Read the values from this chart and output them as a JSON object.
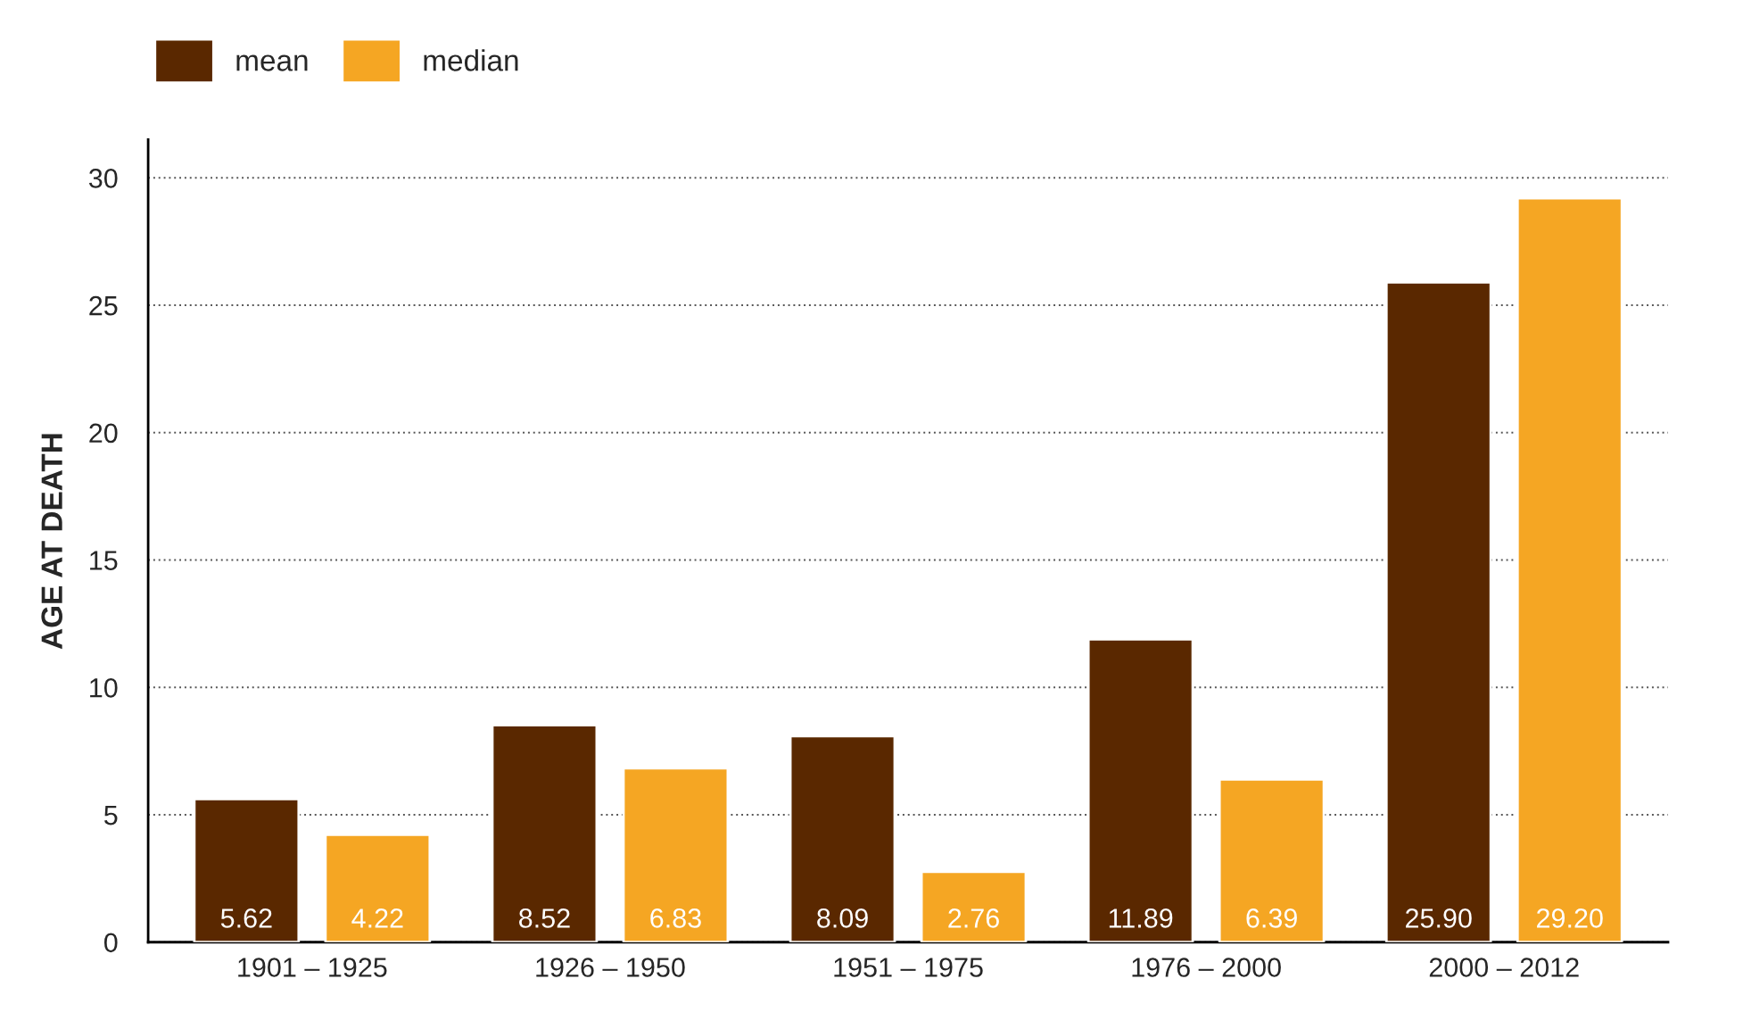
{
  "chart_data": {
    "type": "bar",
    "ylabel": "AGE AT DEATH",
    "categories": [
      "1901 – 1925",
      "1926 – 1950",
      "1951 – 1975",
      "1976 – 2000",
      "2000 – 2012"
    ],
    "series": [
      {
        "name": "mean",
        "color": "#5a2800",
        "values": [
          5.62,
          8.52,
          8.09,
          11.89,
          25.9
        ],
        "value_labels": [
          "5.62",
          "8.52",
          "8.09",
          "11.89",
          "25.90"
        ]
      },
      {
        "name": "median",
        "color": "#f5a623",
        "values": [
          4.22,
          6.83,
          2.76,
          6.39,
          29.2
        ],
        "value_labels": [
          "4.22",
          "6.83",
          "2.76",
          "6.39",
          "29.20"
        ]
      }
    ],
    "ylim": [
      0,
      31.5
    ],
    "yticks": [
      0,
      5,
      10,
      15,
      20,
      25,
      30
    ],
    "grid": "y",
    "legend": "top left"
  }
}
